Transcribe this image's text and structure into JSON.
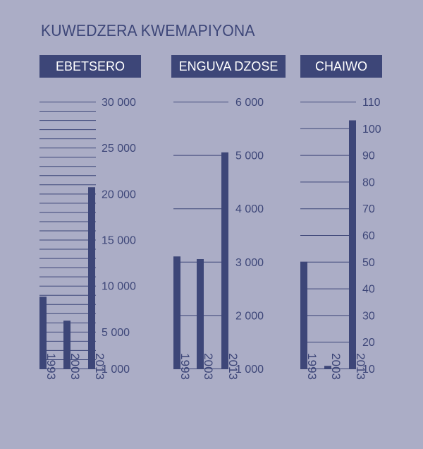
{
  "title": "KUWEDZERA KWEMAPIYONA",
  "colors": {
    "background": "#abadc6",
    "accent": "#3d4678"
  },
  "chart_data": [
    {
      "type": "bar",
      "title": "EBETSERO",
      "categories": [
        "1993",
        "2003",
        "2013"
      ],
      "values": [
        8800,
        6200,
        20700
      ],
      "ylim": [
        1000,
        30000
      ],
      "yticks": [
        1000,
        5000,
        10000,
        15000,
        20000,
        25000,
        30000
      ],
      "ytick_labels": [
        "1 000",
        "5 000",
        "10 000",
        "15 000",
        "20 000",
        "25 000",
        "30 000"
      ],
      "grid": true
    },
    {
      "type": "bar",
      "title": "ENGUVA DZOSE",
      "categories": [
        "1993",
        "2003",
        "2013"
      ],
      "values": [
        3100,
        3050,
        5050
      ],
      "ylim": [
        1000,
        6000
      ],
      "yticks": [
        1000,
        2000,
        3000,
        4000,
        5000,
        6000
      ],
      "ytick_labels": [
        "1 000",
        "2 000",
        "3 000",
        "4 000",
        "5 000",
        "6 000"
      ],
      "grid": true
    },
    {
      "type": "bar",
      "title": "CHAIWO",
      "categories": [
        "1993",
        "2003",
        "2013"
      ],
      "values": [
        50,
        11,
        103
      ],
      "ylim": [
        10,
        110
      ],
      "yticks": [
        10,
        20,
        30,
        40,
        50,
        60,
        70,
        80,
        90,
        100,
        110
      ],
      "ytick_labels": [
        "10",
        "20",
        "30",
        "40",
        "50",
        "60",
        "70",
        "80",
        "90",
        "100",
        "110"
      ],
      "grid": true
    }
  ]
}
